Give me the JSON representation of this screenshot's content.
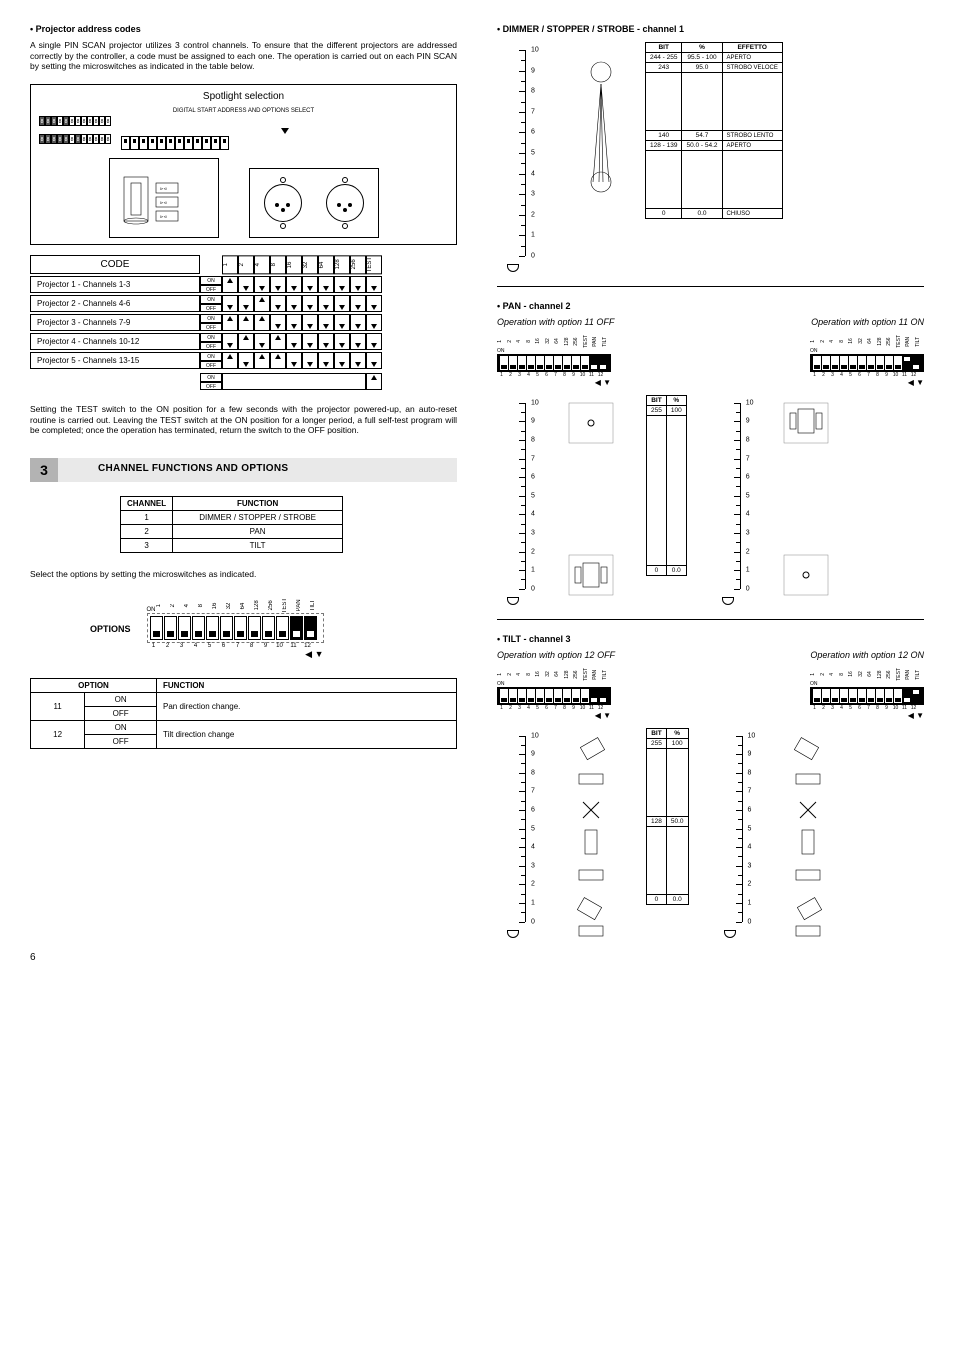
{
  "left": {
    "h_addr": "• Projector address codes",
    "addr_text": "A single PIN SCAN projector utilizes 3 control channels. To ensure that the different projectors are addressed correctly by the controller, a code must be assigned to each one. The operation is carried out on each PIN SCAN by setting the microswitches as indicated in the table below.",
    "spot_title": "Spotlight selection",
    "dss_label": "DIGITAL START ADDRESS AND OPTIONS SELECT",
    "code_label": "CODE",
    "bit_heads": [
      "1",
      "2",
      "4",
      "8",
      "16",
      "32",
      "64",
      "128",
      "256",
      "TEST"
    ],
    "proj_rows": [
      {
        "name": "Projector 1  - Channels 1-3",
        "pattern": [
          "up",
          "dn",
          "dn",
          "dn",
          "dn",
          "dn",
          "dn",
          "dn",
          "dn",
          "dn"
        ]
      },
      {
        "name": "Projector 2  - Channels 4-6",
        "pattern": [
          "dn",
          "dn",
          "up",
          "dn",
          "dn",
          "dn",
          "dn",
          "dn",
          "dn",
          "dn"
        ]
      },
      {
        "name": "Projector 3  - Channels 7-9",
        "pattern": [
          "up",
          "up",
          "up",
          "dn",
          "dn",
          "dn",
          "dn",
          "dn",
          "dn",
          "dn"
        ]
      },
      {
        "name": "Projector 4  - Channels 10-12",
        "pattern": [
          "dn",
          "up",
          "dn",
          "up",
          "dn",
          "dn",
          "dn",
          "dn",
          "dn",
          "dn"
        ]
      },
      {
        "name": "Projector 5  - Channels 13-15",
        "pattern": [
          "up",
          "dn",
          "up",
          "up",
          "dn",
          "dn",
          "dn",
          "dn",
          "dn",
          "dn"
        ]
      }
    ],
    "on": "ON",
    "off": "OFF",
    "test_text": "Setting the TEST switch to the ON position for a few seconds with the projector powered-up, an auto-reset routine is carried out. Leaving the TEST switch at the ON position for a longer period, a full self-test program will be completed; once the operation has terminated, return the switch to the OFF position.",
    "sec3_num": "3",
    "sec3_title": "CHANNEL FUNCTIONS AND OPTIONS",
    "ch_head": [
      "CHANNEL",
      "FUNCTION"
    ],
    "ch_rows": [
      [
        "1",
        "DIMMER / STOPPER / STROBE"
      ],
      [
        "2",
        "PAN"
      ],
      [
        "3",
        "TILT"
      ]
    ],
    "opt_text": "Select the options by setting the microswitches as indicated.",
    "opt_label": "OPTIONS",
    "opt_top": [
      "1",
      "2",
      "4",
      "8",
      "16",
      "32",
      "64",
      "128",
      "256",
      "TEST",
      "PAN",
      "TILT"
    ],
    "opt_bot": [
      "1",
      "2",
      "3",
      "4",
      "5",
      "6",
      "7",
      "8",
      "9",
      "10",
      "11",
      "12"
    ],
    "opt_table_head": [
      "OPTION",
      "FUNCTION"
    ],
    "opt_rows": [
      {
        "n": "11",
        "on": "ON",
        "off": "OFF",
        "fn": "Pan direction change."
      },
      {
        "n": "12",
        "on": "ON",
        "off": "OFF",
        "fn": "Tilt direction change"
      }
    ]
  },
  "right": {
    "h_dim": "• DIMMER / STOPPER / STROBE - channel 1",
    "dim_table_head": [
      "BIT",
      "%",
      "EFFETTO"
    ],
    "dim_rows": [
      {
        "bit": "244 - 255",
        "pct": "95.5 - 100",
        "eff": "APERTO"
      },
      {
        "bit": "243",
        "pct": "95.0",
        "eff": "STROBO VELOCE"
      },
      {
        "bit": "",
        "pct": "",
        "eff": ""
      },
      {
        "bit": "140",
        "pct": "54.7",
        "eff": "STROBO LENTO"
      },
      {
        "bit": "128 - 139",
        "pct": "50.0 - 54.2",
        "eff": "APERTO"
      },
      {
        "bit": "",
        "pct": "",
        "eff": ""
      },
      {
        "bit": "0",
        "pct": "0.0",
        "eff": "CHIUSO"
      }
    ],
    "scale": [
      "10",
      "9",
      "8",
      "7",
      "6",
      "5",
      "4",
      "3",
      "2",
      "1",
      "0"
    ],
    "h_pan": "• PAN - channel 2",
    "pan_off": "Operation with option 11 OFF",
    "pan_on": "Operation with option 11 ON",
    "dip_top": [
      "1",
      "2",
      "4",
      "8",
      "16",
      "32",
      "64",
      "128",
      "256",
      "TEST",
      "PAN",
      "TILT"
    ],
    "dip_bot": [
      "1",
      "2",
      "3",
      "4",
      "5",
      "6",
      "7",
      "8",
      "9",
      "10",
      "11",
      "12"
    ],
    "on_lbl": "ON",
    "bit_head": [
      "BIT",
      "%"
    ],
    "pan_bits": [
      {
        "bit": "255",
        "pct": "100"
      },
      {
        "bit": "0",
        "pct": "0.0"
      }
    ],
    "h_tilt": "• TILT - channel 3",
    "tilt_off": "Operation with option 12 OFF",
    "tilt_on": "Operation with option 12 ON",
    "tilt_bits": [
      {
        "bit": "255",
        "pct": "100"
      },
      {
        "bit": "128",
        "pct": "50.0"
      },
      {
        "bit": "0",
        "pct": "0.0"
      }
    ]
  },
  "page_num": "6"
}
